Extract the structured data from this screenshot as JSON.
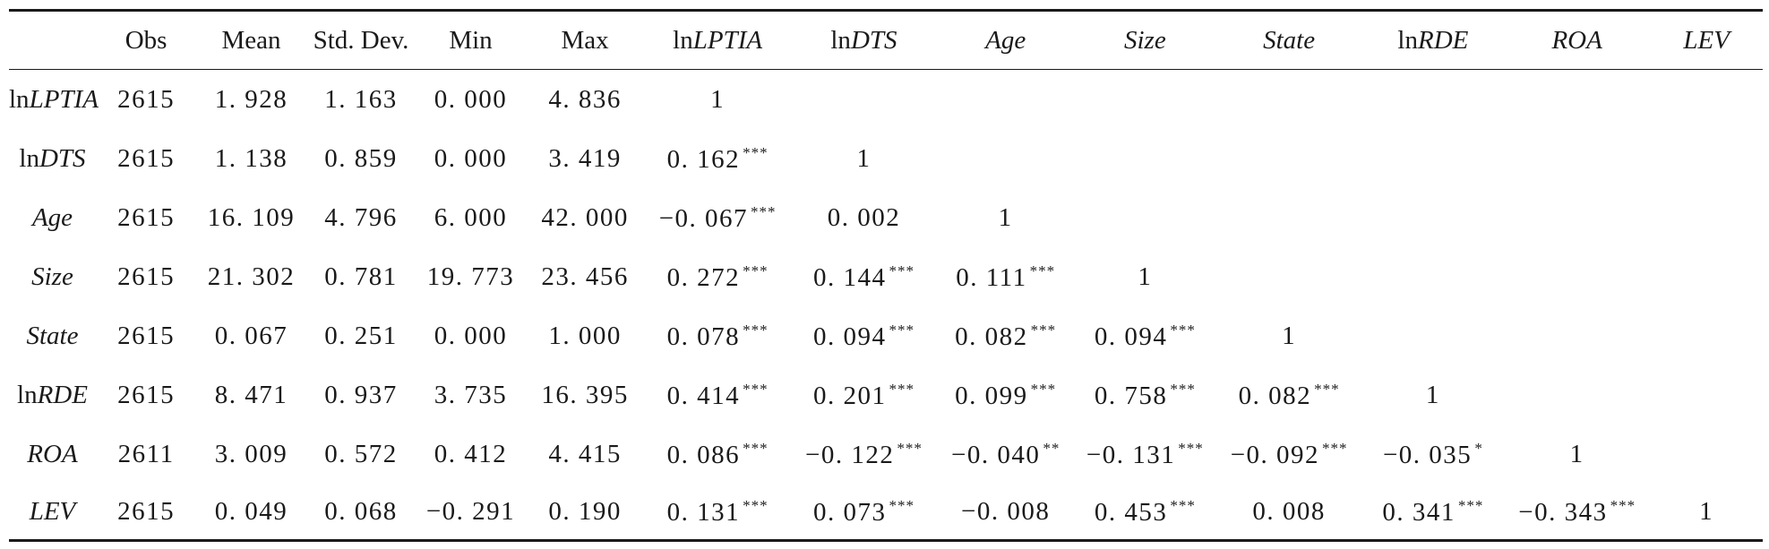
{
  "table": {
    "headers": [
      {
        "prefix": "",
        "name": ""
      },
      {
        "prefix": "Obs",
        "name": ""
      },
      {
        "prefix": "Mean",
        "name": ""
      },
      {
        "prefix": "Std. Dev.",
        "name": ""
      },
      {
        "prefix": "Min",
        "name": ""
      },
      {
        "prefix": "Max",
        "name": ""
      },
      {
        "prefix": "ln",
        "name": "LPTIA"
      },
      {
        "prefix": "ln",
        "name": "DTS"
      },
      {
        "prefix": "",
        "name": "Age"
      },
      {
        "prefix": "",
        "name": "Size"
      },
      {
        "prefix": "",
        "name": "State"
      },
      {
        "prefix": "ln",
        "name": "RDE"
      },
      {
        "prefix": "",
        "name": "ROA"
      },
      {
        "prefix": "",
        "name": "LEV"
      }
    ],
    "rows": [
      {
        "prefix": "ln",
        "name": "LPTIA",
        "cells": [
          {
            "v": "2615",
            "s": ""
          },
          {
            "v": "1. 928",
            "s": ""
          },
          {
            "v": "1. 163",
            "s": ""
          },
          {
            "v": "0. 000",
            "s": ""
          },
          {
            "v": "4. 836",
            "s": ""
          },
          {
            "v": "1",
            "s": ""
          },
          {
            "v": "",
            "s": ""
          },
          {
            "v": "",
            "s": ""
          },
          {
            "v": "",
            "s": ""
          },
          {
            "v": "",
            "s": ""
          },
          {
            "v": "",
            "s": ""
          },
          {
            "v": "",
            "s": ""
          },
          {
            "v": "",
            "s": ""
          }
        ]
      },
      {
        "prefix": "ln",
        "name": "DTS",
        "cells": [
          {
            "v": "2615",
            "s": ""
          },
          {
            "v": "1. 138",
            "s": ""
          },
          {
            "v": "0. 859",
            "s": ""
          },
          {
            "v": "0. 000",
            "s": ""
          },
          {
            "v": "3. 419",
            "s": ""
          },
          {
            "v": "0. 162",
            "s": "***"
          },
          {
            "v": "1",
            "s": ""
          },
          {
            "v": "",
            "s": ""
          },
          {
            "v": "",
            "s": ""
          },
          {
            "v": "",
            "s": ""
          },
          {
            "v": "",
            "s": ""
          },
          {
            "v": "",
            "s": ""
          },
          {
            "v": "",
            "s": ""
          }
        ]
      },
      {
        "prefix": "",
        "name": "Age",
        "cells": [
          {
            "v": "2615",
            "s": ""
          },
          {
            "v": "16. 109",
            "s": ""
          },
          {
            "v": "4. 796",
            "s": ""
          },
          {
            "v": "6. 000",
            "s": ""
          },
          {
            "v": "42. 000",
            "s": ""
          },
          {
            "v": "−0. 067",
            "s": "***"
          },
          {
            "v": "0. 002",
            "s": ""
          },
          {
            "v": "1",
            "s": ""
          },
          {
            "v": "",
            "s": ""
          },
          {
            "v": "",
            "s": ""
          },
          {
            "v": "",
            "s": ""
          },
          {
            "v": "",
            "s": ""
          },
          {
            "v": "",
            "s": ""
          }
        ]
      },
      {
        "prefix": "",
        "name": "Size",
        "cells": [
          {
            "v": "2615",
            "s": ""
          },
          {
            "v": "21. 302",
            "s": ""
          },
          {
            "v": "0. 781",
            "s": ""
          },
          {
            "v": "19. 773",
            "s": ""
          },
          {
            "v": "23. 456",
            "s": ""
          },
          {
            "v": "0. 272",
            "s": "***"
          },
          {
            "v": "0. 144",
            "s": "***"
          },
          {
            "v": "0. 111",
            "s": "***"
          },
          {
            "v": "1",
            "s": ""
          },
          {
            "v": "",
            "s": ""
          },
          {
            "v": "",
            "s": ""
          },
          {
            "v": "",
            "s": ""
          },
          {
            "v": "",
            "s": ""
          }
        ]
      },
      {
        "prefix": "",
        "name": "State",
        "cells": [
          {
            "v": "2615",
            "s": ""
          },
          {
            "v": "0. 067",
            "s": ""
          },
          {
            "v": "0. 251",
            "s": ""
          },
          {
            "v": "0. 000",
            "s": ""
          },
          {
            "v": "1. 000",
            "s": ""
          },
          {
            "v": "0. 078",
            "s": "***"
          },
          {
            "v": "0. 094",
            "s": "***"
          },
          {
            "v": "0. 082",
            "s": "***"
          },
          {
            "v": "0. 094",
            "s": "***"
          },
          {
            "v": "1",
            "s": ""
          },
          {
            "v": "",
            "s": ""
          },
          {
            "v": "",
            "s": ""
          },
          {
            "v": "",
            "s": ""
          }
        ]
      },
      {
        "prefix": "ln",
        "name": "RDE",
        "cells": [
          {
            "v": "2615",
            "s": ""
          },
          {
            "v": "8. 471",
            "s": ""
          },
          {
            "v": "0. 937",
            "s": ""
          },
          {
            "v": "3. 735",
            "s": ""
          },
          {
            "v": "16. 395",
            "s": ""
          },
          {
            "v": "0. 414",
            "s": "***"
          },
          {
            "v": "0. 201",
            "s": "***"
          },
          {
            "v": "0. 099",
            "s": "***"
          },
          {
            "v": "0. 758",
            "s": "***"
          },
          {
            "v": "0. 082",
            "s": "***"
          },
          {
            "v": "1",
            "s": ""
          },
          {
            "v": "",
            "s": ""
          },
          {
            "v": "",
            "s": ""
          }
        ]
      },
      {
        "prefix": "",
        "name": "ROA",
        "cells": [
          {
            "v": "2611",
            "s": ""
          },
          {
            "v": "3. 009",
            "s": ""
          },
          {
            "v": "0. 572",
            "s": ""
          },
          {
            "v": "0. 412",
            "s": ""
          },
          {
            "v": "4. 415",
            "s": ""
          },
          {
            "v": "0. 086",
            "s": "***"
          },
          {
            "v": "−0. 122",
            "s": "***"
          },
          {
            "v": "−0. 040",
            "s": "**"
          },
          {
            "v": "−0. 131",
            "s": "***"
          },
          {
            "v": "−0. 092",
            "s": "***"
          },
          {
            "v": "−0. 035",
            "s": "*"
          },
          {
            "v": "1",
            "s": ""
          },
          {
            "v": "",
            "s": ""
          }
        ]
      },
      {
        "prefix": "",
        "name": "LEV",
        "cells": [
          {
            "v": "2615",
            "s": ""
          },
          {
            "v": "0. 049",
            "s": ""
          },
          {
            "v": "0. 068",
            "s": ""
          },
          {
            "v": "−0. 291",
            "s": ""
          },
          {
            "v": "0. 190",
            "s": ""
          },
          {
            "v": "0. 131",
            "s": "***"
          },
          {
            "v": "0. 073",
            "s": "***"
          },
          {
            "v": "−0. 008",
            "s": ""
          },
          {
            "v": "0. 453",
            "s": "***"
          },
          {
            "v": "0. 008",
            "s": ""
          },
          {
            "v": "0. 341",
            "s": "***"
          },
          {
            "v": "−0. 343",
            "s": "***"
          },
          {
            "v": "1",
            "s": ""
          }
        ]
      }
    ]
  }
}
